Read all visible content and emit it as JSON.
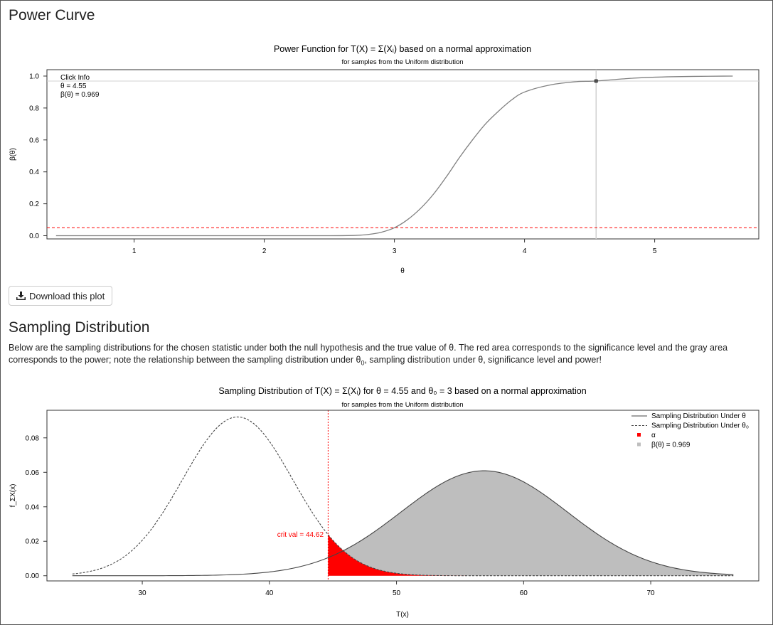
{
  "sections": {
    "power_title": "Power Curve",
    "sampling_title": "Sampling Distribution",
    "sampling_desc_a": "Below are the sampling distributions for the chosen statistic under both the null hypothesis and the true value of θ. The red area corresponds to the significance level and the gray area corresponds to the power; note the relationship between the sampling distribution under θ",
    "sampling_desc_sub": "0",
    "sampling_desc_b": ", sampling distribution under θ, significance level and power!"
  },
  "download_button": {
    "label": "Download this plot",
    "icon": "download-icon"
  },
  "colors": {
    "alpha": "#ff0000",
    "power": "#bebebe",
    "curve": "#808080",
    "critline": "#ff0000"
  },
  "chart_data": [
    {
      "type": "line",
      "title": "Power Function for T(X) = Σ(Xᵢ) based on a normal approximation",
      "subtitle": "for samples from the Uniform distribution",
      "xlabel": "θ",
      "ylabel": "β(θ)",
      "xlim": [
        0.33,
        5.8
      ],
      "ylim": [
        -0.02,
        1.04
      ],
      "xticks": [
        1,
        2,
        3,
        4,
        5
      ],
      "yticks": [
        "0.0",
        "0.2",
        "0.4",
        "0.6",
        "0.8",
        "1.0"
      ],
      "x": [
        0.4,
        1.0,
        1.5,
        2.0,
        2.5,
        2.7,
        2.8,
        2.9,
        3.0,
        3.1,
        3.2,
        3.3,
        3.4,
        3.5,
        3.6,
        3.7,
        3.8,
        3.9,
        4.0,
        4.2,
        4.4,
        4.55,
        4.8,
        5.0,
        5.3,
        5.6
      ],
      "y": [
        0.0,
        0.0,
        0.0,
        0.0,
        0.0,
        0.002,
        0.008,
        0.022,
        0.05,
        0.1,
        0.17,
        0.26,
        0.37,
        0.49,
        0.6,
        0.7,
        0.78,
        0.85,
        0.9,
        0.945,
        0.965,
        0.969,
        0.985,
        0.993,
        0.998,
        1.0
      ],
      "significance_level": 0.05,
      "click_point": {
        "theta": 4.55,
        "power": 0.969
      },
      "click_info": {
        "heading": "Click Info",
        "theta_line": "θ = 4.55",
        "beta_line": "β(θ) = 0.969"
      }
    },
    {
      "type": "area",
      "title": "Sampling Distribution of T(X) = Σ(Xᵢ) for θ = 4.55 and θ₀ = 3 based on a normal approximation",
      "subtitle": "for samples from the Uniform distribution",
      "xlabel": "T(x)",
      "ylabel": "f_ΣX(x)",
      "xlim": [
        22.5,
        78.5
      ],
      "ylim": [
        -0.003,
        0.096
      ],
      "xticks": [
        30,
        40,
        50,
        60,
        70
      ],
      "yticks": [
        "0.00",
        "0.02",
        "0.04",
        "0.06",
        "0.08"
      ],
      "series": [
        {
          "name": "Sampling Distribution Under θ",
          "mean": 56.9,
          "sd": 6.55,
          "line": "solid"
        },
        {
          "name": "Sampling Distribution Under θ₀",
          "mean": 37.5,
          "sd": 4.33,
          "line": "dashed"
        }
      ],
      "x_range": [
        24.5,
        76.5
      ],
      "crit_val": 44.62,
      "crit_label": "crit val = 44.62",
      "legend": [
        {
          "label": "Sampling Distribution Under θ",
          "kind": "solid-line"
        },
        {
          "label": "Sampling Distribution Under θ₀",
          "kind": "dashed-line"
        },
        {
          "label": "α",
          "kind": "red-square"
        },
        {
          "label": "β(θ) = 0.969",
          "kind": "gray-square"
        }
      ],
      "legend_position": "top-right"
    }
  ]
}
